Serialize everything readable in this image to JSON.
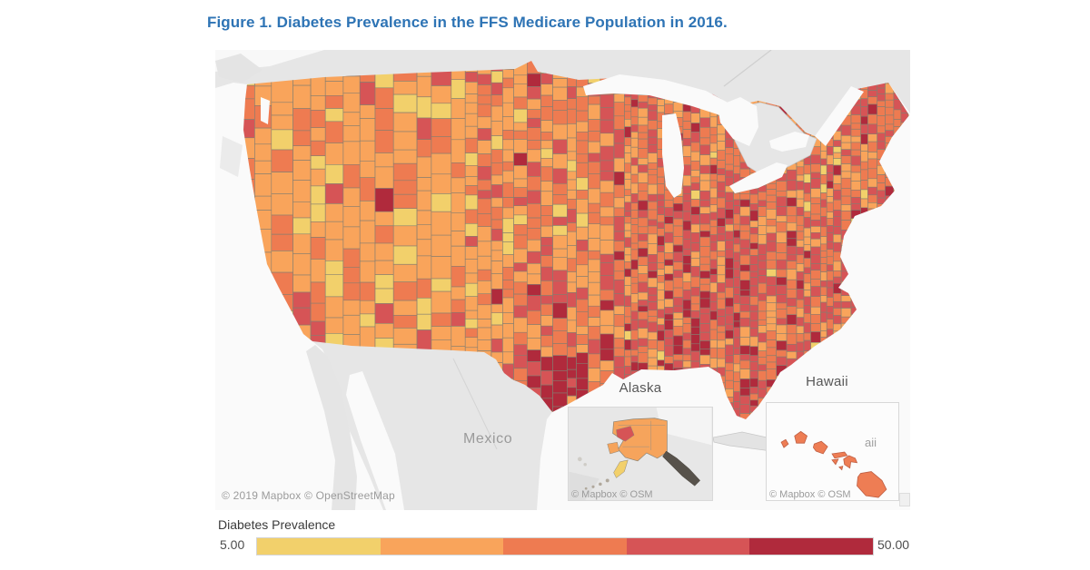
{
  "figure": {
    "title": "Figure 1. Diabetes Prevalence in the FFS Medicare Population in 2016.",
    "title_color": "#2E74B5"
  },
  "map": {
    "background_land": "#E6E6E6",
    "water_color": "#FAFAFA",
    "county_border": "#847E70",
    "attribution": "© 2019 Mapbox © OpenStreetMap",
    "inset_attribution": "© Mapbox © OSM",
    "labels": {
      "mexico": "Mexico",
      "alaska": "Alaska",
      "hawaii": "Hawaii",
      "hawaii_map_label_partial": "aii"
    }
  },
  "legend": {
    "title": "Diabetes Prevalence",
    "min_label": "5.00",
    "max_label": "50.00"
  },
  "chart_data": {
    "type": "choropleth",
    "title": "Figure 1. Diabetes Prevalence in the FFS Medicare Population in 2016.",
    "measure": "Diabetes Prevalence",
    "geography": "United States counties (contiguous US, with Alaska and Hawaii insets)",
    "legend_position": "bottom",
    "scale": {
      "min": 5.0,
      "max": 50.0,
      "classes": [
        "#F2D06B",
        "#F9A45B",
        "#EE7B51",
        "#D65456",
        "#B02A3C"
      ]
    },
    "observations": [
      "County values are encoded by color only; no individual county value labels are shown.",
      "Lowest-prevalence (yellow) counties cluster in the Mountain West, especially Utah and western Colorado.",
      "Highest-prevalence (dark red) counties cluster in South Texas along the Rio Grande, with scattered dark-red counties in the Dakotas, inland Southern California, and the Southeast.",
      "The East and Southeast are generally darker (higher prevalence) than the West and Plains."
    ]
  }
}
